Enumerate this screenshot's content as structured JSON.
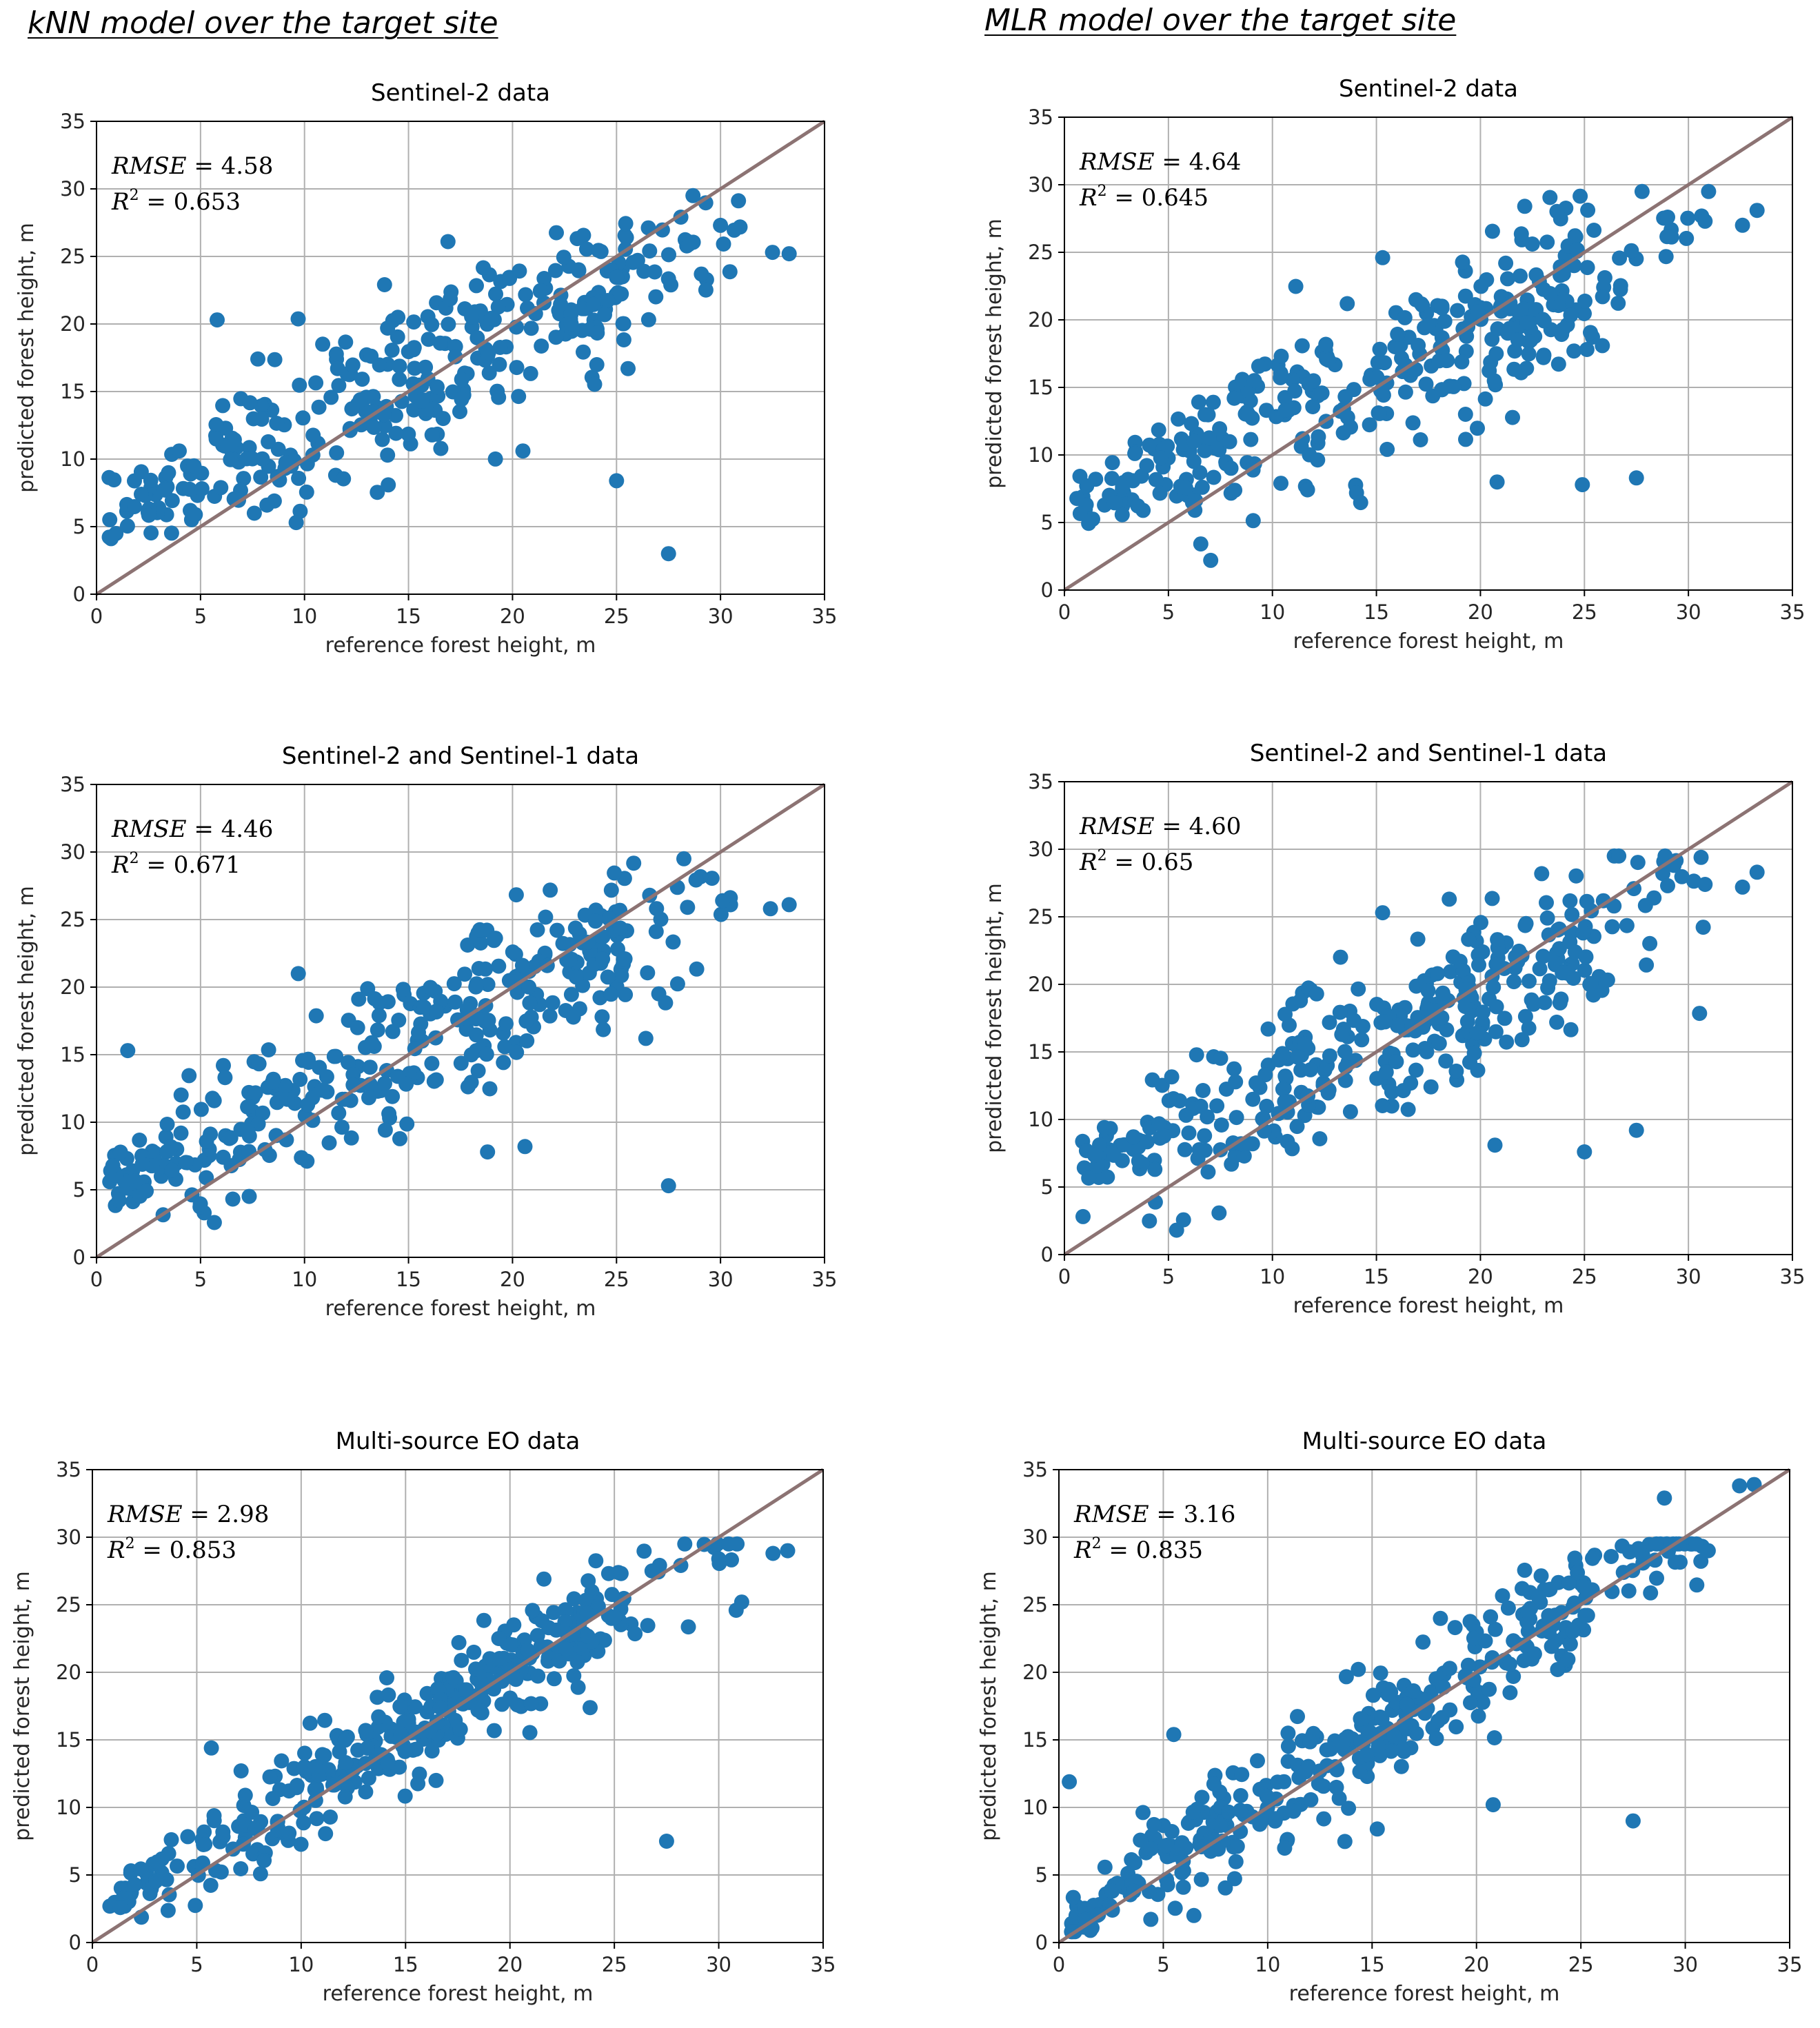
{
  "headers": {
    "left": "kNN model over the target site",
    "right": "MLR model over the target site"
  },
  "common": {
    "xlabel": "reference forest height, m",
    "ylabel": "predicted forest height, m",
    "ticks": [
      0,
      5,
      10,
      15,
      20,
      25,
      30,
      35
    ],
    "xlim": [
      0,
      35
    ],
    "ylim": [
      0,
      35
    ],
    "point_color": "#1f77b4",
    "line_color": "#8c7373"
  },
  "chart_data": [
    {
      "id": "knn-s2",
      "model": "kNN",
      "type": "scatter",
      "title": "Sentinel-2 data",
      "rmse_label": "RMSE",
      "rmse": "4.58",
      "r2_label": "R",
      "r2_sup": "2",
      "r2": "0.653",
      "xlabel": "reference forest height, m",
      "ylabel": "predicted forest height, m",
      "xlim": [
        0,
        35
      ],
      "ylim": [
        0,
        35
      ],
      "reference_line": [
        [
          0,
          0
        ],
        [
          35,
          35
        ]
      ],
      "n_points": 350,
      "seed": 11,
      "noise": 3.0,
      "bias": 0.6,
      "shrink": 0.72,
      "outliers": [
        [
          27.5,
          3.0
        ],
        [
          25.0,
          8.4
        ],
        [
          20.5,
          10.6
        ],
        [
          5.8,
          20.3
        ],
        [
          9.6,
          5.3
        ],
        [
          33.3,
          25.2
        ],
        [
          32.5,
          25.3
        ],
        [
          30.0,
          27.3
        ]
      ]
    },
    {
      "id": "mlr-s2",
      "model": "MLR",
      "type": "scatter",
      "title": "Sentinel-2 data",
      "rmse_label": "RMSE",
      "rmse": "4.64",
      "r2_label": "R",
      "r2_sup": "2",
      "r2": "0.645",
      "xlabel": "reference forest height, m",
      "ylabel": "predicted forest height, m",
      "xlim": [
        0,
        35
      ],
      "ylim": [
        0,
        35
      ],
      "reference_line": [
        [
          0,
          0
        ],
        [
          35,
          35
        ]
      ],
      "n_points": 350,
      "seed": 23,
      "noise": 3.0,
      "bias": 0.4,
      "shrink": 0.68,
      "outliers": [
        [
          27.5,
          8.3
        ],
        [
          24.9,
          7.8
        ],
        [
          20.8,
          8.0
        ],
        [
          15.3,
          24.6
        ],
        [
          33.3,
          28.1
        ],
        [
          32.6,
          27.0
        ],
        [
          30.8,
          27.3
        ],
        [
          29.0,
          27.6
        ]
      ]
    },
    {
      "id": "knn-s2s1",
      "model": "kNN",
      "type": "scatter",
      "title": "Sentinel-2 and Sentinel-1 data",
      "rmse_label": "RMSE",
      "rmse": "4.46",
      "r2_label": "R",
      "r2_sup": "2",
      "r2": "0.671",
      "xlabel": "reference forest height, m",
      "ylabel": "predicted forest height, m",
      "xlim": [
        0,
        35
      ],
      "ylim": [
        0,
        35
      ],
      "reference_line": [
        [
          0,
          0
        ],
        [
          35,
          35
        ]
      ],
      "n_points": 350,
      "seed": 37,
      "noise": 2.9,
      "bias": 0.6,
      "shrink": 0.73,
      "outliers": [
        [
          27.5,
          5.3
        ],
        [
          18.8,
          7.8
        ],
        [
          20.6,
          8.2
        ],
        [
          1.5,
          15.3
        ],
        [
          33.3,
          26.1
        ],
        [
          32.4,
          25.8
        ],
        [
          30.1,
          26.4
        ],
        [
          9.7,
          21.0
        ]
      ]
    },
    {
      "id": "mlr-s2s1",
      "model": "MLR",
      "type": "scatter",
      "title": "Sentinel-2 and Sentinel-1 data",
      "rmse_label": "RMSE",
      "rmse": "4.60",
      "r2_label": "R",
      "r2_sup": "2",
      "r2": "0.65",
      "xlabel": "reference forest height, m",
      "ylabel": "predicted forest height, m",
      "xlim": [
        0,
        35
      ],
      "ylim": [
        0,
        35
      ],
      "reference_line": [
        [
          0,
          0
        ],
        [
          35,
          35
        ]
      ],
      "n_points": 350,
      "seed": 41,
      "noise": 3.0,
      "bias": 0.4,
      "shrink": 0.68,
      "outliers": [
        [
          27.5,
          9.2
        ],
        [
          25.0,
          7.6
        ],
        [
          20.7,
          8.1
        ],
        [
          15.3,
          25.3
        ],
        [
          33.3,
          28.3
        ],
        [
          32.6,
          27.2
        ],
        [
          30.8,
          27.4
        ],
        [
          29.0,
          27.3
        ]
      ]
    },
    {
      "id": "knn-multi",
      "model": "kNN",
      "type": "scatter",
      "title": "Multi-source EO data",
      "rmse_label": "RMSE",
      "rmse": "2.98",
      "r2_label": "R",
      "r2_sup": "2",
      "r2": "0.853",
      "xlabel": "reference forest height, m",
      "ylabel": "predicted forest height, m",
      "xlim": [
        0,
        35
      ],
      "ylim": [
        0,
        35
      ],
      "reference_line": [
        [
          0,
          0
        ],
        [
          35,
          35
        ]
      ],
      "n_points": 380,
      "seed": 53,
      "noise": 2.0,
      "bias": 0.3,
      "shrink": 0.9,
      "outliers": [
        [
          27.5,
          7.5
        ],
        [
          5.7,
          14.4
        ],
        [
          33.3,
          29.0
        ],
        [
          32.6,
          28.8
        ],
        [
          30.0,
          28.4
        ],
        [
          31.1,
          25.2
        ]
      ]
    },
    {
      "id": "mlr-multi",
      "model": "MLR",
      "type": "scatter",
      "title": "Multi-source EO data",
      "rmse_label": "RMSE",
      "rmse": "3.16",
      "r2_label": "R",
      "r2_sup": "2",
      "r2": "0.835",
      "xlabel": "reference forest height, m",
      "ylabel": "predicted forest height, m",
      "xlim": [
        0,
        35
      ],
      "ylim": [
        0,
        35
      ],
      "reference_line": [
        [
          0,
          0
        ],
        [
          35,
          35
        ]
      ],
      "n_points": 380,
      "seed": 67,
      "noise": 2.1,
      "bias": 0.2,
      "shrink": 0.95,
      "outliers": [
        [
          27.5,
          9.0
        ],
        [
          20.8,
          10.2
        ],
        [
          5.5,
          15.4
        ],
        [
          0.5,
          11.9
        ],
        [
          33.3,
          33.9
        ],
        [
          32.6,
          33.8
        ],
        [
          29.0,
          32.9
        ],
        [
          31.1,
          29.0
        ]
      ]
    }
  ]
}
